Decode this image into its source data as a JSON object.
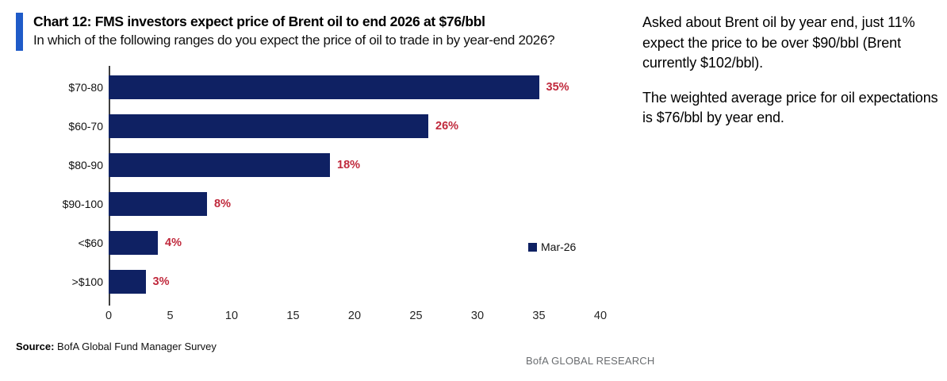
{
  "header": {
    "title": "Chart 12: FMS investors expect price of Brent oil to end 2026 at $76/bbl",
    "subtitle": "In which of the following ranges do you expect the price of oil to trade in by year-end 2026?"
  },
  "chart_data": {
    "type": "bar",
    "orientation": "horizontal",
    "categories": [
      "$70-80",
      "$60-70",
      "$80-90",
      "$90-100",
      "<$60",
      ">$100"
    ],
    "values": [
      35,
      26,
      18,
      8,
      4,
      3
    ],
    "value_labels": [
      "35%",
      "26%",
      "18%",
      "8%",
      "4%",
      "3%"
    ],
    "series_name": "Mar-26",
    "xlim": [
      0,
      40
    ],
    "x_ticks": [
      "0",
      "5",
      "10",
      "15",
      "20",
      "25",
      "30",
      "35",
      "40"
    ],
    "grid": false,
    "legend_position": "right-center"
  },
  "commentary": {
    "para1": "Asked about Brent oil by year end, just 11% expect the price to be over $90/bbl (Brent currently $102/bbl).",
    "para2": "The weighted average price for oil expectations is $76/bbl by year end."
  },
  "footer": {
    "source_label": "Source:",
    "source_text": " BofA Global Fund Manager Survey",
    "brand": "BofA GLOBAL RESEARCH"
  },
  "colors": {
    "accent_bar": "#1f5bc8",
    "bar_navy": "#0f2163",
    "value_red": "#c0293c",
    "axis_gray": "#3f3f3f",
    "brand_gray": "#6a6d70"
  }
}
